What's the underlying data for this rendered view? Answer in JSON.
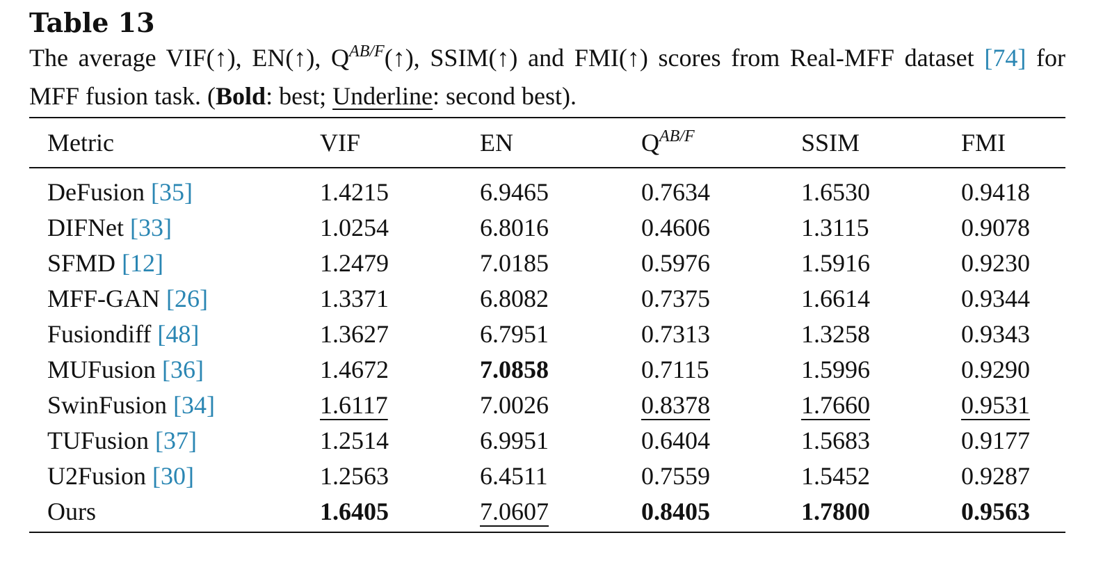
{
  "title": "Table 13",
  "caption": {
    "p1": "The average VIF(↑), EN(↑), Q",
    "sup": "AB/F",
    "p2": "(↑), SSIM(↑) and FMI(↑) scores from Real-MFF dataset ",
    "ref": "[74]",
    "p3": " for MFF fusion task. (",
    "bold_word": "Bold",
    "p4": ": best; ",
    "under_word": "Underline",
    "p5": ": second best)."
  },
  "columns": {
    "metric": "Metric",
    "vif": "VIF",
    "en": "EN",
    "q_base": "Q",
    "q_sup": "AB/F",
    "ssim": "SSIM",
    "fmi": "FMI"
  },
  "rows": [
    {
      "method": "DeFusion",
      "ref": "[35]",
      "values": [
        "1.4215",
        "6.9465",
        "0.7634",
        "1.6530",
        "0.9418"
      ],
      "style": [
        "",
        "",
        "",
        "",
        ""
      ]
    },
    {
      "method": "DIFNet",
      "ref": "[33]",
      "values": [
        "1.0254",
        "6.8016",
        "0.4606",
        "1.3115",
        "0.9078"
      ],
      "style": [
        "",
        "",
        "",
        "",
        ""
      ]
    },
    {
      "method": "SFMD",
      "ref": "[12]",
      "values": [
        "1.2479",
        "7.0185",
        "0.5976",
        "1.5916",
        "0.9230"
      ],
      "style": [
        "",
        "",
        "",
        "",
        ""
      ]
    },
    {
      "method": "MFF-GAN",
      "ref": "[26]",
      "values": [
        "1.3371",
        "6.8082",
        "0.7375",
        "1.6614",
        "0.9344"
      ],
      "style": [
        "",
        "",
        "",
        "",
        ""
      ]
    },
    {
      "method": "Fusiondiff",
      "ref": "[48]",
      "values": [
        "1.3627",
        "6.7951",
        "0.7313",
        "1.3258",
        "0.9343"
      ],
      "style": [
        "",
        "",
        "",
        "",
        ""
      ]
    },
    {
      "method": "MUFusion",
      "ref": "[36]",
      "values": [
        "1.4672",
        "7.0858",
        "0.7115",
        "1.5996",
        "0.9290"
      ],
      "style": [
        "",
        "bold",
        "",
        "",
        ""
      ]
    },
    {
      "method": "SwinFusion",
      "ref": "[34]",
      "values": [
        "1.6117",
        "7.0026",
        "0.8378",
        "1.7660",
        "0.9531"
      ],
      "style": [
        "under",
        "",
        "under",
        "under",
        "under"
      ]
    },
    {
      "method": "TUFusion",
      "ref": "[37]",
      "values": [
        "1.2514",
        "6.9951",
        "0.6404",
        "1.5683",
        "0.9177"
      ],
      "style": [
        "",
        "",
        "",
        "",
        ""
      ]
    },
    {
      "method": "U2Fusion",
      "ref": "[30]",
      "values": [
        "1.2563",
        "6.4511",
        "0.7559",
        "1.5452",
        "0.9287"
      ],
      "style": [
        "",
        "",
        "",
        "",
        ""
      ]
    },
    {
      "method": "Ours",
      "ref": "",
      "values": [
        "1.6405",
        "7.0607",
        "0.8405",
        "1.7800",
        "0.9563"
      ],
      "style": [
        "bold",
        "under",
        "bold",
        "bold",
        "bold"
      ]
    }
  ]
}
